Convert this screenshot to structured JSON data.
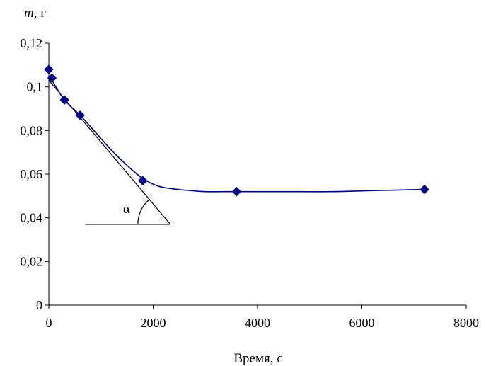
{
  "chart_data": {
    "type": "scatter",
    "title": "",
    "xlabel": "Время, с",
    "ylabel_var": "m",
    "ylabel_unit": ", г",
    "xlim": [
      0,
      8000
    ],
    "ylim": [
      0,
      0.12
    ],
    "x_ticks": [
      0,
      2000,
      4000,
      6000,
      8000
    ],
    "x_tick_labels": [
      "0",
      "2000",
      "4000",
      "6000",
      "8000"
    ],
    "y_ticks": [
      0,
      0.02,
      0.04,
      0.06,
      0.08,
      0.1,
      0.12
    ],
    "y_tick_labels": [
      "0",
      "0,02",
      "0,04",
      "0,06",
      "0,08",
      "0,1",
      "0,12"
    ],
    "grid": false,
    "legend": "none",
    "series": [
      {
        "marker": "diamond",
        "color": "#000080",
        "x": [
          0,
          60,
          300,
          600,
          1800,
          3600,
          7200
        ],
        "y": [
          0.108,
          0.104,
          0.094,
          0.087,
          0.057,
          0.052,
          0.053
        ]
      }
    ],
    "trend_curve": {
      "color": "#000080",
      "x": [
        0,
        60,
        300,
        600,
        900,
        1200,
        1500,
        1800,
        2100,
        2400,
        2700,
        3000,
        3600,
        4500,
        5400,
        6300,
        7200
      ],
      "y": [
        0.105,
        0.103,
        0.094,
        0.087,
        0.079,
        0.071,
        0.064,
        0.058,
        0.0545,
        0.0532,
        0.0525,
        0.052,
        0.052,
        0.052,
        0.052,
        0.0525,
        0.053
      ]
    },
    "tangent_line": {
      "color": "#000000",
      "from": [
        0,
        0.103
      ],
      "to": [
        2330,
        0.037
      ]
    },
    "baseline_line": {
      "from": [
        700,
        0.037
      ],
      "to": [
        2330,
        0.037
      ]
    },
    "angle_annotation": "α"
  }
}
